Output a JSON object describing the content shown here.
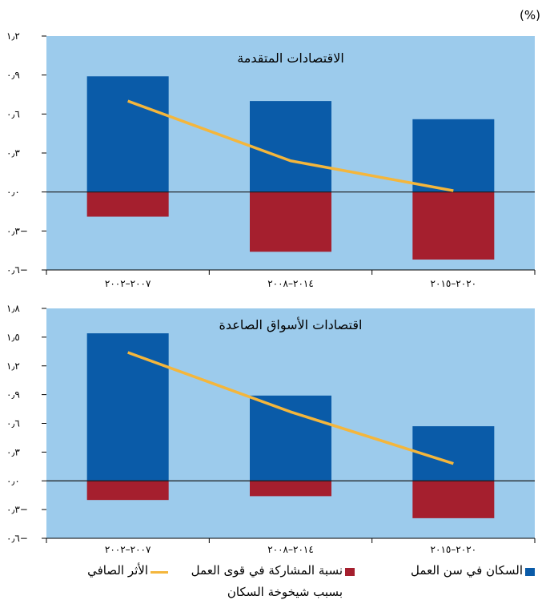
{
  "unit_label": "(%)",
  "colors": {
    "plot_bg": "#9ccbec",
    "working_age": "#0a5ba8",
    "participation": "#a51f2e",
    "net": "#f4b63c",
    "zero_line": "#1a1a1a"
  },
  "legend": [
    {
      "label": "السكان في سن العمل",
      "swatch": "box",
      "color": "#0a5ba8"
    },
    {
      "label": "نسبة المشاركة في قوى العمل\nبسبب شيخوخة السكان",
      "swatch": "box",
      "color": "#a51f2e"
    },
    {
      "label": "الأثر الصافي",
      "swatch": "line",
      "color": "#f4b63c"
    }
  ],
  "chart_data": [
    {
      "type": "bar",
      "title": "الاقتصادات المتقدمة",
      "categories": [
        "٢٠٠٧–٢٠٠٢",
        "٢٠١٤–٢٠٠٨",
        "٢٠٢٠–٢٠١٥"
      ],
      "ylim": [
        -0.6,
        1.2
      ],
      "yticks": [
        -0.6,
        -0.3,
        0.0,
        0.3,
        0.6,
        0.9,
        1.2
      ],
      "ytick_labels": [
        "٠٫٦−",
        "٠٫٣−",
        "٠٫٠",
        "٠٫٣",
        "٠٫٦",
        "٠٫٩",
        "١٫٢"
      ],
      "series": [
        {
          "name": "السكان في سن العمل",
          "kind": "bar",
          "values": [
            0.89,
            0.7,
            0.56
          ]
        },
        {
          "name": "نسبة المشاركة في قوى العمل بسبب شيخوخة السكان",
          "kind": "bar",
          "values": [
            -0.19,
            -0.46,
            -0.52
          ]
        },
        {
          "name": "الأثر الصافي",
          "kind": "line",
          "values": [
            0.7,
            0.24,
            0.01
          ]
        }
      ],
      "grid": false
    },
    {
      "type": "bar",
      "title": "اقتصادات الأسواق الصاعدة",
      "categories": [
        "٢٠٠٧–٢٠٠٢",
        "٢٠١٤–٢٠٠٨",
        "٢٠٢٠–٢٠١٥"
      ],
      "ylim": [
        -0.6,
        1.8
      ],
      "yticks": [
        -0.6,
        -0.3,
        0.0,
        0.3,
        0.6,
        0.9,
        1.2,
        1.5,
        1.8
      ],
      "ytick_labels": [
        "٠٫٦−",
        "٠٫٣−",
        "٠٫٠",
        "٠٫٣",
        "٠٫٦",
        "٠٫٩",
        "١٫٢",
        "١٫٥",
        "١٫٨"
      ],
      "series": [
        {
          "name": "السكان في سن العمل",
          "kind": "bar",
          "values": [
            1.54,
            0.89,
            0.57
          ]
        },
        {
          "name": "نسبة المشاركة في قوى العمل بسبب شيخوخة السكان",
          "kind": "bar",
          "values": [
            -0.2,
            -0.16,
            -0.39
          ]
        },
        {
          "name": "الأثر الصافي",
          "kind": "line",
          "values": [
            1.34,
            0.72,
            0.18
          ]
        }
      ],
      "grid": false
    }
  ]
}
